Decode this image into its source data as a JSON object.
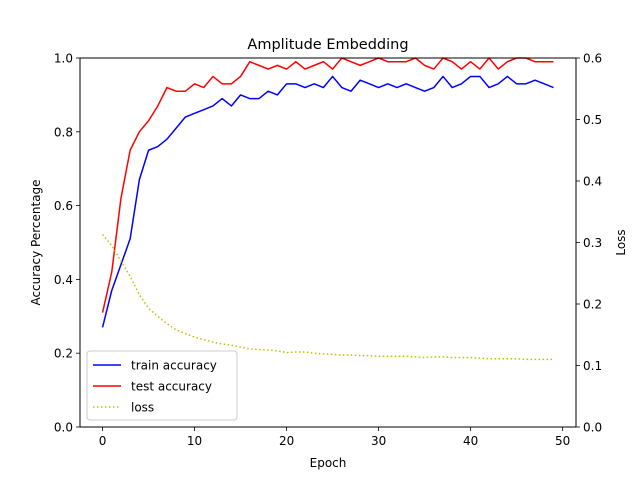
{
  "chart_data": {
    "type": "line",
    "title": "Amplitude Embedding",
    "xlabel": "Epoch",
    "ylabel": "Accuracy Percentage",
    "y2label": "Loss",
    "xlim": [
      -2.45,
      51.45
    ],
    "ylim": [
      0,
      1.0
    ],
    "y2lim": [
      0,
      0.6
    ],
    "xticks": [
      0,
      10,
      20,
      30,
      40,
      50
    ],
    "xtick_labels": [
      "0",
      "10",
      "20",
      "30",
      "40",
      "50"
    ],
    "yticks": [
      0,
      0.2,
      0.4,
      0.6,
      0.8,
      1.0
    ],
    "ytick_labels": [
      "0.0",
      "0.2",
      "0.4",
      "0.6",
      "0.8",
      "1.0"
    ],
    "y2ticks": [
      0,
      0.1,
      0.2,
      0.3,
      0.4,
      0.5,
      0.6
    ],
    "y2tick_labels": [
      "0.0",
      "0.1",
      "0.2",
      "0.3",
      "0.4",
      "0.5",
      "0.6"
    ],
    "grid": false,
    "legend_position": "lower-left",
    "x": [
      0,
      1,
      2,
      3,
      4,
      5,
      6,
      7,
      8,
      9,
      10,
      11,
      12,
      13,
      14,
      15,
      16,
      17,
      18,
      19,
      20,
      21,
      22,
      23,
      24,
      25,
      26,
      27,
      28,
      29,
      30,
      31,
      32,
      33,
      34,
      35,
      36,
      37,
      38,
      39,
      40,
      41,
      42,
      43,
      44,
      45,
      46,
      47,
      48,
      49
    ],
    "series": [
      {
        "name": "train accuracy",
        "axis": "left",
        "color": "#0000ff",
        "style": "solid",
        "values": [
          0.27,
          0.37,
          0.44,
          0.51,
          0.67,
          0.75,
          0.76,
          0.78,
          0.81,
          0.84,
          0.85,
          0.86,
          0.87,
          0.89,
          0.87,
          0.9,
          0.89,
          0.89,
          0.91,
          0.9,
          0.93,
          0.93,
          0.92,
          0.93,
          0.92,
          0.95,
          0.92,
          0.91,
          0.94,
          0.93,
          0.92,
          0.93,
          0.92,
          0.93,
          0.92,
          0.91,
          0.92,
          0.95,
          0.92,
          0.93,
          0.95,
          0.95,
          0.92,
          0.93,
          0.95,
          0.93,
          0.93,
          0.94,
          0.93,
          0.92
        ]
      },
      {
        "name": "test accuracy",
        "axis": "left",
        "color": "#ff0000",
        "style": "solid",
        "values": [
          0.31,
          0.42,
          0.62,
          0.75,
          0.8,
          0.83,
          0.87,
          0.92,
          0.91,
          0.91,
          0.93,
          0.92,
          0.95,
          0.93,
          0.93,
          0.95,
          0.99,
          0.98,
          0.97,
          0.98,
          0.97,
          0.99,
          0.97,
          0.98,
          0.99,
          0.97,
          1.0,
          0.99,
          0.98,
          0.99,
          1.0,
          0.99,
          0.99,
          0.99,
          1.0,
          0.98,
          0.97,
          1.0,
          0.99,
          0.97,
          0.99,
          0.97,
          1.0,
          0.97,
          0.99,
          1.0,
          1.0,
          0.99,
          0.99,
          0.99
        ]
      },
      {
        "name": "loss",
        "axis": "right",
        "color": "#bfbf00",
        "style": "dotted",
        "values": [
          0.313,
          0.295,
          0.27,
          0.245,
          0.215,
          0.193,
          0.18,
          0.168,
          0.158,
          0.152,
          0.146,
          0.142,
          0.138,
          0.135,
          0.133,
          0.13,
          0.127,
          0.126,
          0.125,
          0.124,
          0.121,
          0.122,
          0.122,
          0.12,
          0.119,
          0.118,
          0.117,
          0.117,
          0.116,
          0.116,
          0.115,
          0.115,
          0.115,
          0.115,
          0.114,
          0.113,
          0.114,
          0.114,
          0.113,
          0.113,
          0.113,
          0.112,
          0.111,
          0.111,
          0.111,
          0.111,
          0.11,
          0.11,
          0.11,
          0.11
        ]
      }
    ]
  }
}
